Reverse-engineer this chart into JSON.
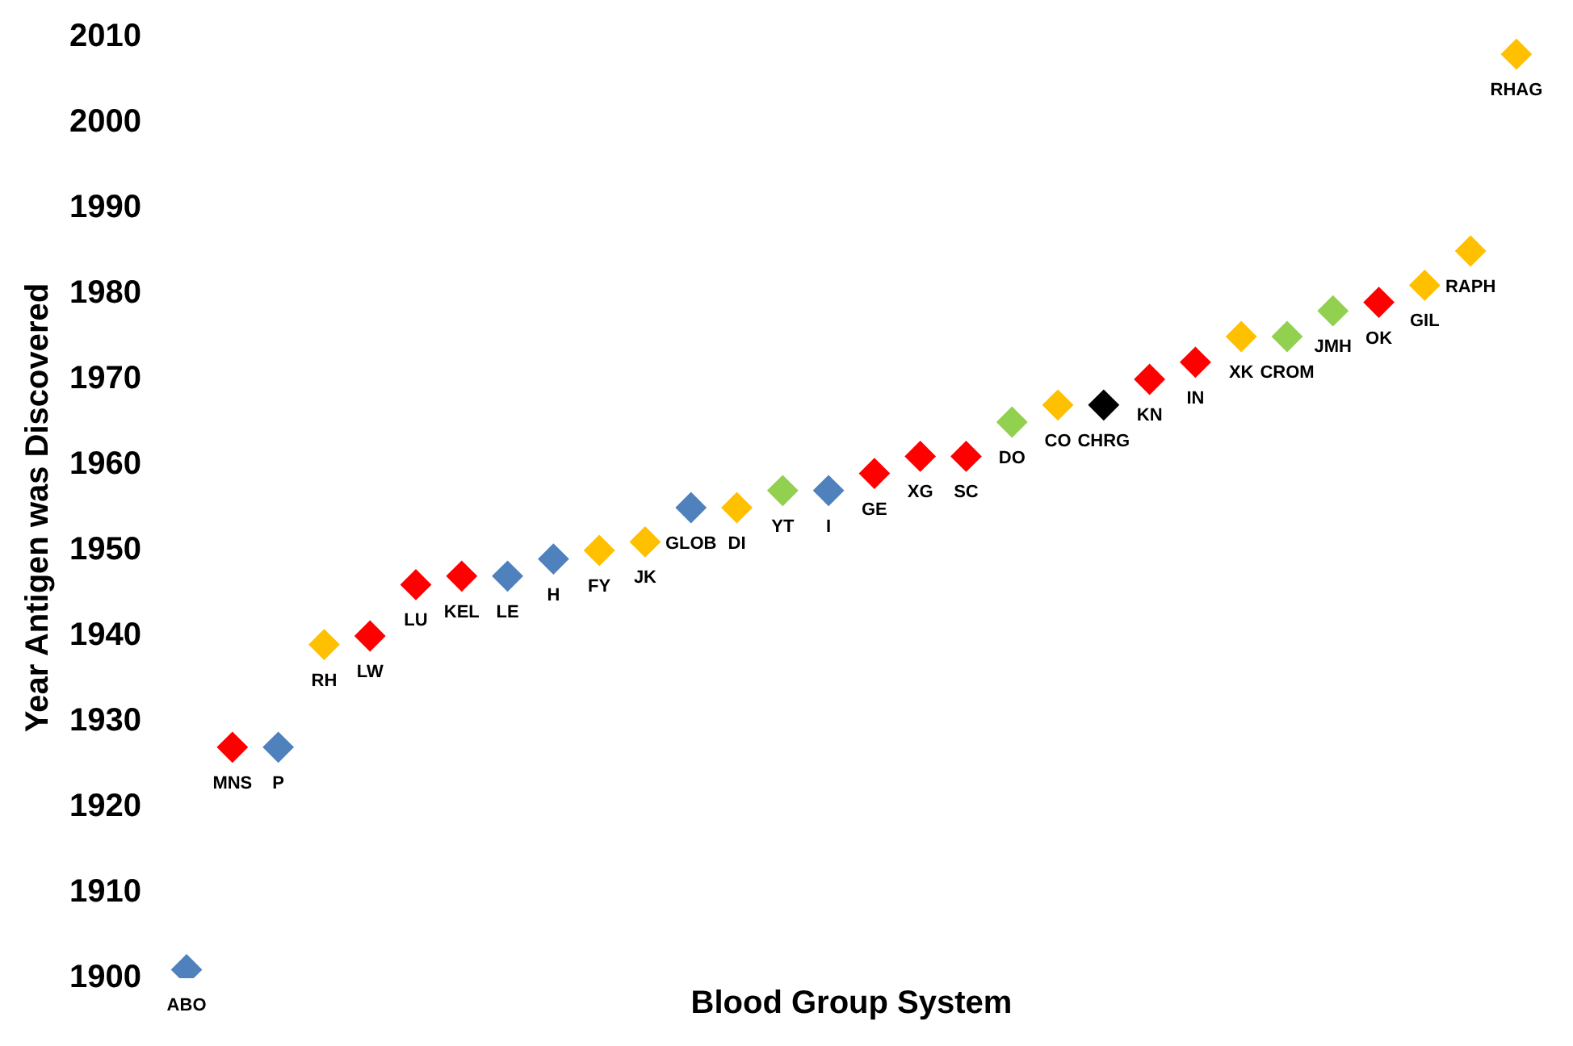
{
  "chart_data": {
    "type": "scatter",
    "xlabel": "Blood Group System",
    "ylabel": "Year Antigen was Discovered",
    "categories": [
      "ABO",
      "MNS",
      "P",
      "RH",
      "LW",
      "LU",
      "KEL",
      "LE",
      "H",
      "FY",
      "JK",
      "GLOB",
      "DI",
      "YT",
      "I",
      "GE",
      "XG",
      "SC",
      "DO",
      "CO",
      "CHRG",
      "KN",
      "IN",
      "XK",
      "CROM",
      "JMH",
      "OK",
      "GIL",
      "RAPH",
      "RHAG"
    ],
    "values": [
      1901,
      1927,
      1927,
      1939,
      1940,
      1946,
      1947,
      1947,
      1949,
      1950,
      1951,
      1955,
      1955,
      1957,
      1957,
      1959,
      1961,
      1961,
      1965,
      1967,
      1967,
      1970,
      1972,
      1975,
      1975,
      1978,
      1979,
      1981,
      1985,
      2008
    ],
    "colors": [
      "#4f81bd",
      "#ff0000",
      "#4f81bd",
      "#ffc000",
      "#ff0000",
      "#ff0000",
      "#ff0000",
      "#4f81bd",
      "#4f81bd",
      "#ffc000",
      "#ffc000",
      "#4f81bd",
      "#ffc000",
      "#92d050",
      "#4f81bd",
      "#ff0000",
      "#ff0000",
      "#ff0000",
      "#92d050",
      "#ffc000",
      "#000000",
      "#ff0000",
      "#ff0000",
      "#ffc000",
      "#92d050",
      "#92d050",
      "#ff0000",
      "#ffc000",
      "#ffc000",
      "#ffc000"
    ],
    "ylim": [
      1900,
      2010
    ],
    "yticks": [
      1900,
      1910,
      1920,
      1930,
      1940,
      1950,
      1960,
      1970,
      1980,
      1990,
      2000,
      2010
    ],
    "grid": false,
    "legend": false,
    "marker": "diamond",
    "tick_labels": "y"
  }
}
